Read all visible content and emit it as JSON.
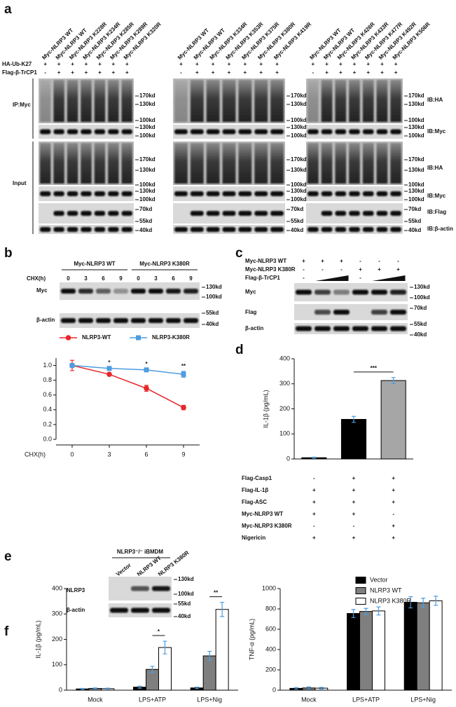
{
  "panel_labels": [
    "a",
    "b",
    "c",
    "d",
    "e",
    "f"
  ],
  "blots": {
    "a": {
      "row_labels": [
        "HA-Ub-K27",
        "Flag-β-TrCP1"
      ],
      "side_labels": [
        "IP:Myc",
        "Input"
      ],
      "ib_labels": [
        "IB:HA",
        "IB:Myc",
        "IB:HA",
        "IB:Myc",
        "IB:Flag",
        "IB:β-actin"
      ],
      "groups": [
        {
          "columns": [
            "Myc-NLRP3 WT",
            "Myc-NLRP3 WT",
            "Myc-NLRP3 K228R",
            "Myc-NLRP3 K234R",
            "Myc-NLRP3 K285R",
            "Myc-NLRP3 K289R",
            "Myc-NLRP3 K320R"
          ],
          "signs": [
            [
              "+",
              "+",
              "+",
              "+",
              "+",
              "+",
              "+"
            ],
            [
              "-",
              "+",
              "+",
              "+",
              "+",
              "+",
              "+"
            ]
          ],
          "markers": [
            "170kd",
            "130kd",
            "100kd",
            "130kd",
            "100kd",
            "170kd",
            "130kd",
            "100kd",
            "130kd",
            "100kd",
            "70kd",
            "55kd",
            "40kd"
          ]
        },
        {
          "columns": [
            "Myc-NLRP3 WT",
            "Myc-NLRP3 WT",
            "Myc-NLRP3 K334R",
            "Myc-NLRP3 K353R",
            "Myc-NLRP3 K375R",
            "Myc-NLRP3 K380R",
            "Myc-NLRP3 K419R"
          ],
          "signs": [
            [
              "+",
              "+",
              "+",
              "+",
              "+",
              "+",
              "+"
            ],
            [
              "-",
              "+",
              "+",
              "+",
              "+",
              "+",
              "+"
            ]
          ],
          "markers": [
            "170kd",
            "130kd",
            "100kd",
            "130kd",
            "100kd",
            "170kd",
            "130kd",
            "100kd",
            "130kd",
            "100kd",
            "70kd",
            "55kd",
            "40kd"
          ]
        },
        {
          "columns": [
            "Myc-NLRP3 WT",
            "Myc-NLRP3 WT",
            "Myc-NLRP3 K426R",
            "Myc-NLRP3 K433R",
            "Myc-NLRP3 K477R",
            "Myc-NLRP3 K492R",
            "Myc-NLRP3 K506R"
          ],
          "signs": [
            [
              "+",
              "+",
              "+",
              "+",
              "+",
              "+",
              "+"
            ],
            [
              "-",
              "+",
              "+",
              "+",
              "+",
              "+",
              "+"
            ]
          ],
          "markers": [
            "170kd",
            "130kd",
            "100kd",
            "130kd",
            "100kd",
            "170kd",
            "130kd",
            "100kd",
            "130kd",
            "100kd",
            "70kd",
            "55kd",
            "40kd"
          ]
        }
      ]
    },
    "b": {
      "headers": [
        "Myc-NLRP3 WT",
        "Myc-NLRP3 K380R"
      ],
      "time_label": "CHX(h)",
      "times": [
        "0",
        "3",
        "6",
        "9",
        "0",
        "3",
        "6",
        "9"
      ],
      "row_labels": [
        "Myc",
        "β-actin"
      ],
      "markers": [
        "130kd",
        "100kd",
        "55kd",
        "40kd"
      ]
    },
    "c": {
      "conditions": [
        {
          "label": "Myc-NLRP3 WT",
          "signs": [
            "+",
            "+",
            "+",
            "-",
            "-",
            "-"
          ]
        },
        {
          "label": "Myc-NLRP3 K380R",
          "signs": [
            "-",
            "-",
            "-",
            "+",
            "+",
            "+"
          ]
        },
        {
          "label": "Flag-β-TrCP1",
          "signs": [
            "-",
            "-"
          ]
        }
      ],
      "row_labels": [
        "Myc",
        "Flag",
        "β-actin"
      ],
      "markers": [
        "130kd",
        "100kd",
        "70kd",
        "55kd",
        "40kd"
      ]
    },
    "e": {
      "header": "NLRP3⁻/⁻ iBMDM",
      "columns": [
        "Vector",
        "NLRP3 WT",
        "NLRP3 K380R"
      ],
      "row_labels": [
        "NLRP3",
        "β-actin"
      ],
      "markers": [
        "130kd",
        "100kd",
        "55kd",
        "40kd"
      ]
    }
  },
  "chart_data": [
    {
      "type": "line",
      "x": [
        0,
        3,
        6,
        9
      ],
      "xlim": [
        -1.3,
        10.3
      ],
      "xticks": [
        0,
        3,
        6,
        9
      ],
      "xlabel": "CHX(h)",
      "ylim": [
        0,
        1.1
      ],
      "yticks": [
        {
          "value": 0,
          "label": "0.0"
        },
        0.2,
        0.4,
        0.6,
        0.8,
        {
          "value": 1,
          "label": "1.0"
        }
      ],
      "legend": "top",
      "series": [
        {
          "name": "NLRP3-WT",
          "color": "#e8262a",
          "marker": "circle",
          "values": [
            1,
            0.88,
            0.69,
            0.43
          ],
          "errors": [
            0.07,
            0.01,
            0.04,
            0.03
          ]
        },
        {
          "name": "NLRP3-K380R",
          "color": "#4d9de0",
          "marker": "square",
          "values": [
            1,
            0.96,
            0.94,
            0.88
          ],
          "errors": [
            0.02,
            0.01,
            0.01,
            0.04
          ]
        }
      ],
      "annotations": [
        {
          "text": "*",
          "x": 3
        },
        {
          "text": "*",
          "x": 6
        },
        {
          "text": "**",
          "x": 9
        }
      ]
    },
    {
      "type": "bar",
      "values": [
        5,
        158,
        313
      ],
      "errors": [
        2,
        12,
        12
      ],
      "colors": [
        "#000000",
        "#000000",
        "#a6a6a6"
      ],
      "error_color": "#4d9de0",
      "ylabel": "IL-1β (pg/mL)",
      "ylim": [
        0,
        400
      ],
      "yticks": [
        0,
        100,
        200,
        300,
        400
      ],
      "annotations": [
        {
          "text": "***"
        }
      ],
      "conditions": [
        {
          "label": "Flag-Casp1",
          "signs": [
            "-",
            "+",
            "+"
          ]
        },
        {
          "label": "Flag-IL-1β",
          "signs": [
            "+",
            "+",
            "+"
          ]
        },
        {
          "label": "Flag-ASC",
          "signs": [
            "+",
            "+",
            "+"
          ]
        },
        {
          "label": "Myc-NLRP3 WT",
          "signs": [
            "+",
            "+",
            "-"
          ]
        },
        {
          "label": "Myc-NLRP3 K380R",
          "signs": [
            "-",
            "-",
            "+"
          ]
        },
        {
          "label": "Nigericin",
          "signs": [
            "+",
            "+",
            "+"
          ]
        }
      ]
    },
    {
      "type": "bar",
      "categories": [
        "Mock",
        "LPS+ATP",
        "LPS+Nig"
      ],
      "ylabel": "IL-1β (pg/mL)",
      "ylim": [
        0,
        400
      ],
      "yticks": [
        0,
        100,
        200,
        300,
        400
      ],
      "error_color": "#4d9de0",
      "series": [
        {
          "color": "#000000",
          "values": [
            5,
            12,
            9
          ],
          "errors": [
            2,
            4,
            3
          ]
        },
        {
          "color": "#7f7f7f",
          "values": [
            7,
            82,
            135
          ],
          "errors": [
            2,
            12,
            18
          ]
        },
        {
          "color": "#ffffff",
          "values": [
            6,
            168,
            318
          ],
          "errors": [
            2,
            25,
            28
          ]
        }
      ],
      "annotations": [
        {
          "text": "*",
          "category": "LPS+ATP"
        },
        {
          "text": "**",
          "category": "LPS+Nig"
        }
      ]
    },
    {
      "type": "bar",
      "categories": [
        "Mock",
        "LPS+ATP",
        "LPS+Nig"
      ],
      "ylabel": "TNF-α (pg/mL)",
      "ylim": [
        0,
        1000
      ],
      "yticks": [
        0,
        200,
        400,
        600,
        800,
        1000
      ],
      "error_color": "#4d9de0",
      "legend": "top-right",
      "series": [
        {
          "name": "Vector",
          "color": "#000000",
          "values": [
            18,
            755,
            865
          ],
          "errors": [
            8,
            40,
            55
          ]
        },
        {
          "name": "NLRP3 WT",
          "color": "#7f7f7f",
          "values": [
            22,
            775,
            860
          ],
          "errors": [
            10,
            30,
            45
          ]
        },
        {
          "name": "NLRP3 K380R",
          "color": "#ffffff",
          "values": [
            20,
            780,
            880
          ],
          "errors": [
            8,
            40,
            45
          ]
        }
      ]
    }
  ]
}
